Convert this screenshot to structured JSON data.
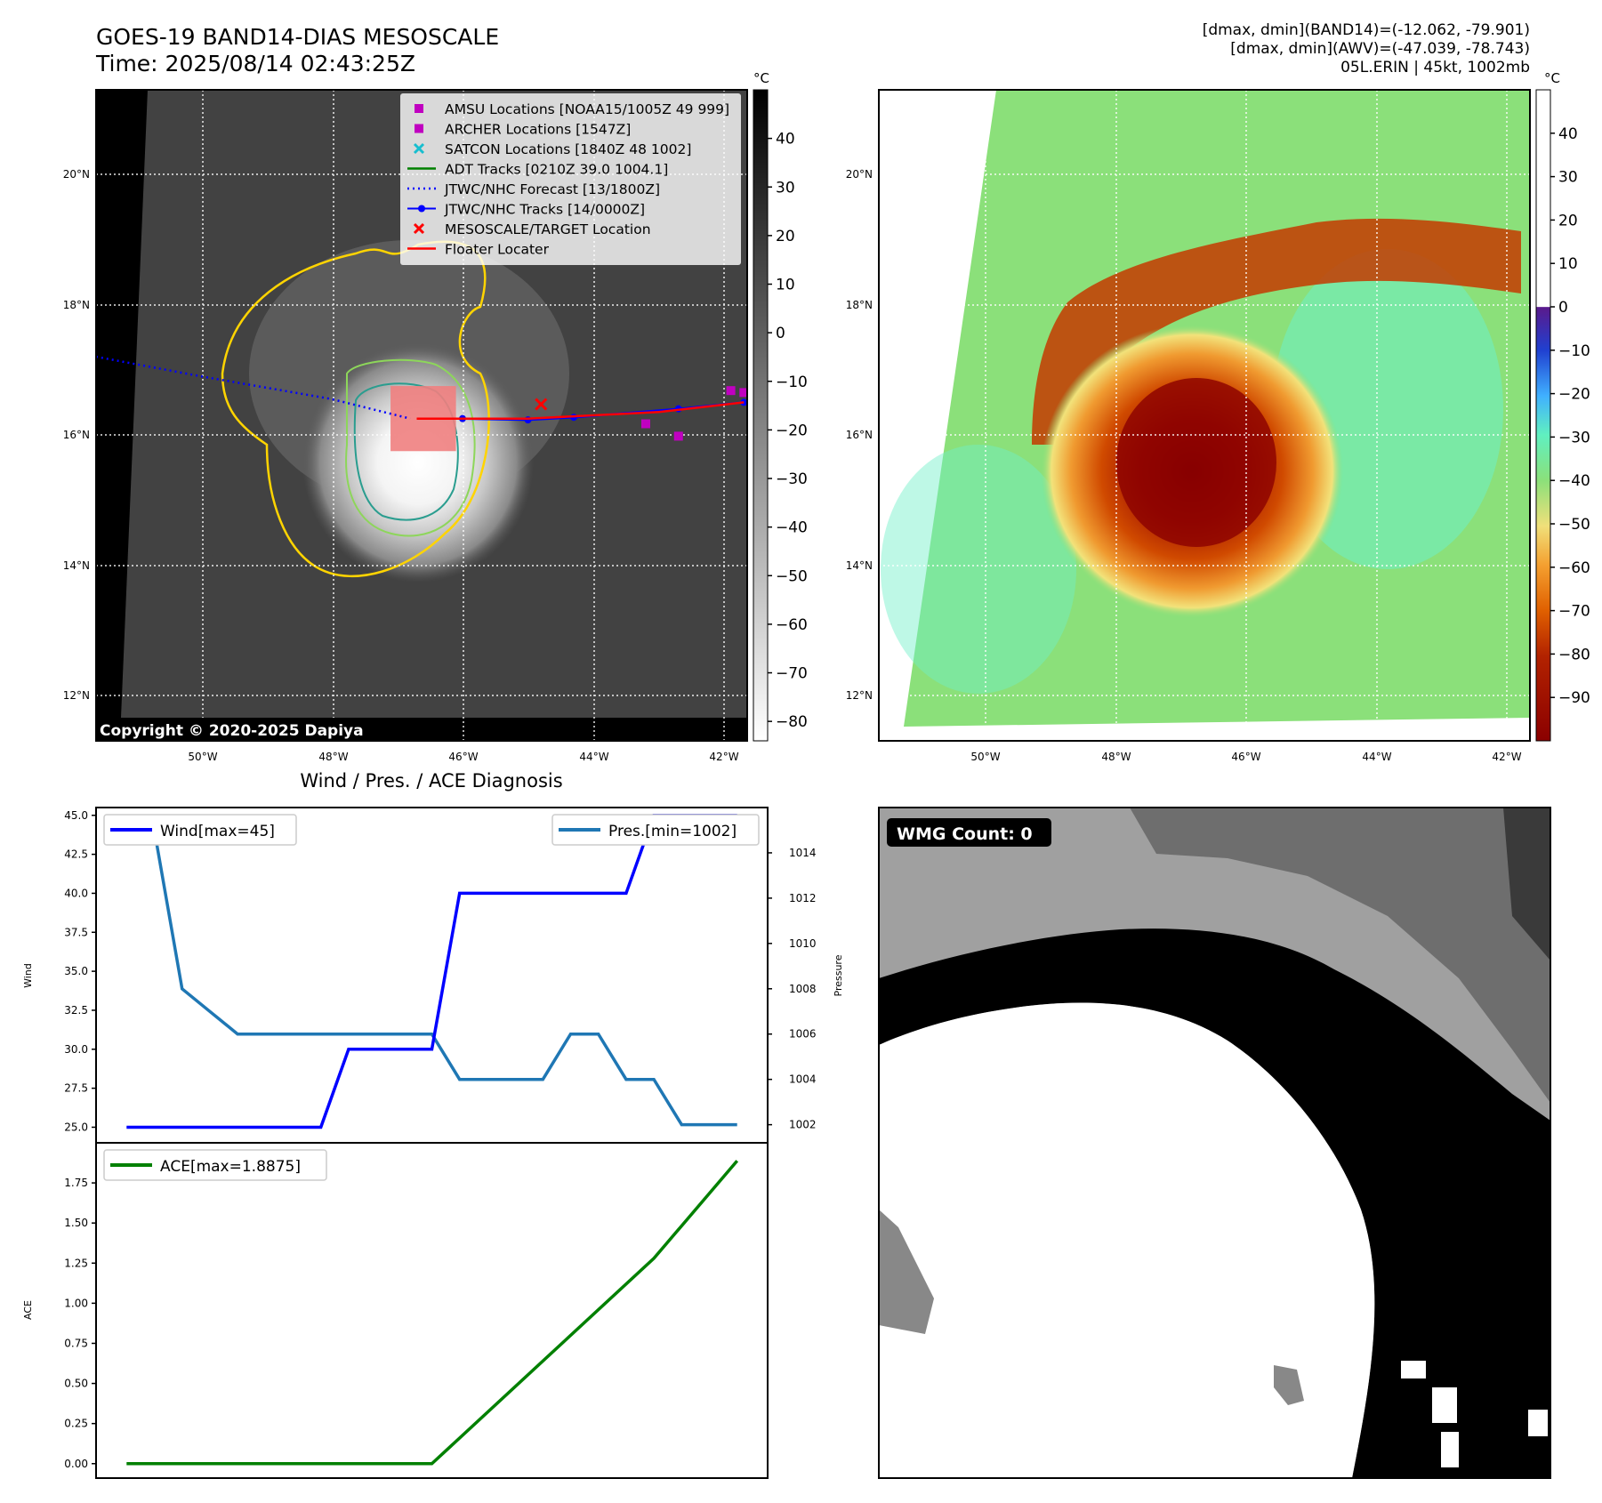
{
  "header": {
    "title_line1": "GOES-19 BAND14-DIAS MESOSCALE",
    "title_line2": "Time: 2025/08/14 02:43:25Z",
    "stats_line1": "[dmax, dmin](BAND14)=(-12.062, -79.901)",
    "stats_line2": "[dmax, dmin](AWV)=(-47.039, -78.743)",
    "stats_line3": "05L.ERIN | 45kt, 1002mb"
  },
  "copyright": "Copyright © 2020-2025 Dapiya",
  "map_axes": {
    "lon_ticks": [
      "50°W",
      "48°W",
      "46°W",
      "44°W",
      "42°W"
    ],
    "lat_ticks": [
      "20°N",
      "18°N",
      "16°N",
      "14°N",
      "12°N"
    ],
    "lon_values": [
      -50,
      -48,
      -46,
      -44,
      -42
    ],
    "lat_values": [
      20,
      18,
      16,
      14,
      12
    ],
    "lon_range": [
      -51.6,
      -41.65
    ],
    "lat_range": [
      11.35,
      21.35
    ]
  },
  "legend": [
    {
      "label": "AMSU Locations [NOAA15/1005Z 49 999]",
      "symbol": "square",
      "color": "#c000c0"
    },
    {
      "label": "ARCHER Locations [1547Z]",
      "symbol": "square",
      "color": "#c000c0"
    },
    {
      "label": "SATCON Locations [1840Z 48 1002]",
      "symbol": "x",
      "color": "#17becf"
    },
    {
      "label": "ADT Tracks [0210Z 39.0 1004.1]",
      "symbol": "line",
      "color": "#008000"
    },
    {
      "label": "JTWC/NHC Forecast [13/1800Z]",
      "symbol": "dotted",
      "color": "#0000ff"
    },
    {
      "label": "JTWC/NHC Tracks [14/0000Z]",
      "symbol": "line-dot",
      "color": "#0000ff"
    },
    {
      "label": "MESOSCALE/TARGET Location",
      "symbol": "x",
      "color": "#ff0000"
    },
    {
      "label": "Floater Locater",
      "symbol": "line",
      "color": "#ff0000"
    }
  ],
  "colorbar_gray": {
    "unit": "°C",
    "ticks": [
      "40",
      "30",
      "20",
      "10",
      "0",
      "−10",
      "−20",
      "−30",
      "−40",
      "−50",
      "−60",
      "−70",
      "−80"
    ],
    "tick_values": [
      40,
      30,
      20,
      10,
      0,
      -10,
      -20,
      -30,
      -40,
      -50,
      -60,
      -70,
      -80
    ],
    "range": [
      -84,
      50
    ]
  },
  "colorbar_color": {
    "unit": "°C",
    "ticks": [
      "40",
      "30",
      "20",
      "10",
      "0",
      "−10",
      "−20",
      "−30",
      "−40",
      "−50",
      "−60",
      "−70",
      "−80",
      "−90"
    ],
    "tick_values": [
      40,
      30,
      20,
      10,
      0,
      -10,
      -20,
      -30,
      -40,
      -50,
      -60,
      -70,
      -80,
      -90
    ],
    "range": [
      -100,
      50
    ]
  },
  "tracks": {
    "forecast": [
      [
        -51.6,
        17.25
      ],
      [
        -50.0,
        16.95
      ],
      [
        -48.0,
        16.6
      ],
      [
        -46.8,
        16.3
      ]
    ],
    "official": [
      [
        -46.0,
        16.3
      ],
      [
        -45.0,
        16.28
      ],
      [
        -44.3,
        16.32
      ],
      [
        -42.7,
        16.45
      ],
      [
        -41.7,
        16.55
      ]
    ],
    "floater": [
      [
        -46.7,
        16.3
      ],
      [
        -45.0,
        16.3
      ],
      [
        -43.0,
        16.4
      ],
      [
        -41.7,
        16.55
      ]
    ],
    "target": [
      -44.8,
      16.52
    ],
    "amsu_archer": [
      [
        -43.2,
        16.22
      ],
      [
        -42.7,
        16.03
      ],
      [
        -41.9,
        16.73
      ],
      [
        -41.7,
        16.7
      ]
    ]
  },
  "panel_titles": {
    "wind_pres": "Wind / Pres. / ACE Diagnosis",
    "wmg": "WMG Count: 0"
  },
  "chart_data": [
    {
      "type": "line",
      "title": "Wind / Pres. / ACE Diagnosis",
      "ylabel": "Wind",
      "ylabel_right": "Pressure",
      "ylim": [
        24.0,
        45.5
      ],
      "y_ticks": [
        "45.0",
        "42.5",
        "40.0",
        "37.5",
        "35.0",
        "32.5",
        "30.0",
        "27.5",
        "25.0"
      ],
      "y_tick_values": [
        45,
        42.5,
        40,
        37.5,
        35,
        32.5,
        30,
        27.5,
        25
      ],
      "y2lim": [
        1001.2,
        1016.0
      ],
      "y2_ticks": [
        "1014",
        "1012",
        "1010",
        "1008",
        "1006",
        "1004",
        "1002"
      ],
      "y2_tick_values": [
        1014,
        1012,
        1010,
        1008,
        1006,
        1004,
        1002
      ],
      "series": [
        {
          "name": "Wind[max=45]",
          "axis": "left",
          "color": "#0000ff",
          "x": [
            0,
            1,
            2,
            3,
            4,
            5,
            6,
            7,
            8,
            9,
            10,
            11,
            12,
            13,
            14,
            15,
            16,
            17,
            18,
            19,
            20,
            21,
            22
          ],
          "values": [
            25,
            25,
            25,
            25,
            25,
            25,
            25,
            25,
            30,
            30,
            30,
            30,
            40,
            40,
            40,
            40,
            40,
            40,
            40,
            45,
            45,
            45,
            45
          ]
        },
        {
          "name": "Pres.[min=1002]",
          "axis": "right",
          "color": "#1f77b4",
          "x": [
            0,
            1,
            2,
            3,
            4,
            5,
            6,
            7,
            8,
            9,
            10,
            11,
            12,
            13,
            14,
            15,
            16,
            17,
            18,
            19,
            20,
            21,
            22
          ],
          "values": [
            1015,
            1015,
            1008,
            1007,
            1006,
            1006,
            1006,
            1006,
            1006,
            1006,
            1006,
            1006,
            1004,
            1004,
            1004,
            1004,
            1006,
            1006,
            1004,
            1004,
            1002,
            1002,
            1002
          ]
        }
      ]
    },
    {
      "type": "line",
      "ylabel": "ACE",
      "ylim": [
        -0.09,
        2.0
      ],
      "y_ticks": [
        "1.75",
        "1.50",
        "1.25",
        "1.00",
        "0.75",
        "0.50",
        "0.25",
        "0.00"
      ],
      "y_tick_values": [
        1.75,
        1.5,
        1.25,
        1.0,
        0.75,
        0.5,
        0.25,
        0.0
      ],
      "series": [
        {
          "name": "ACE[max=1.8875]",
          "color": "#008000",
          "x": [
            0,
            11,
            19,
            22
          ],
          "values": [
            0.0,
            0.0,
            1.28,
            1.8875
          ]
        }
      ]
    }
  ]
}
